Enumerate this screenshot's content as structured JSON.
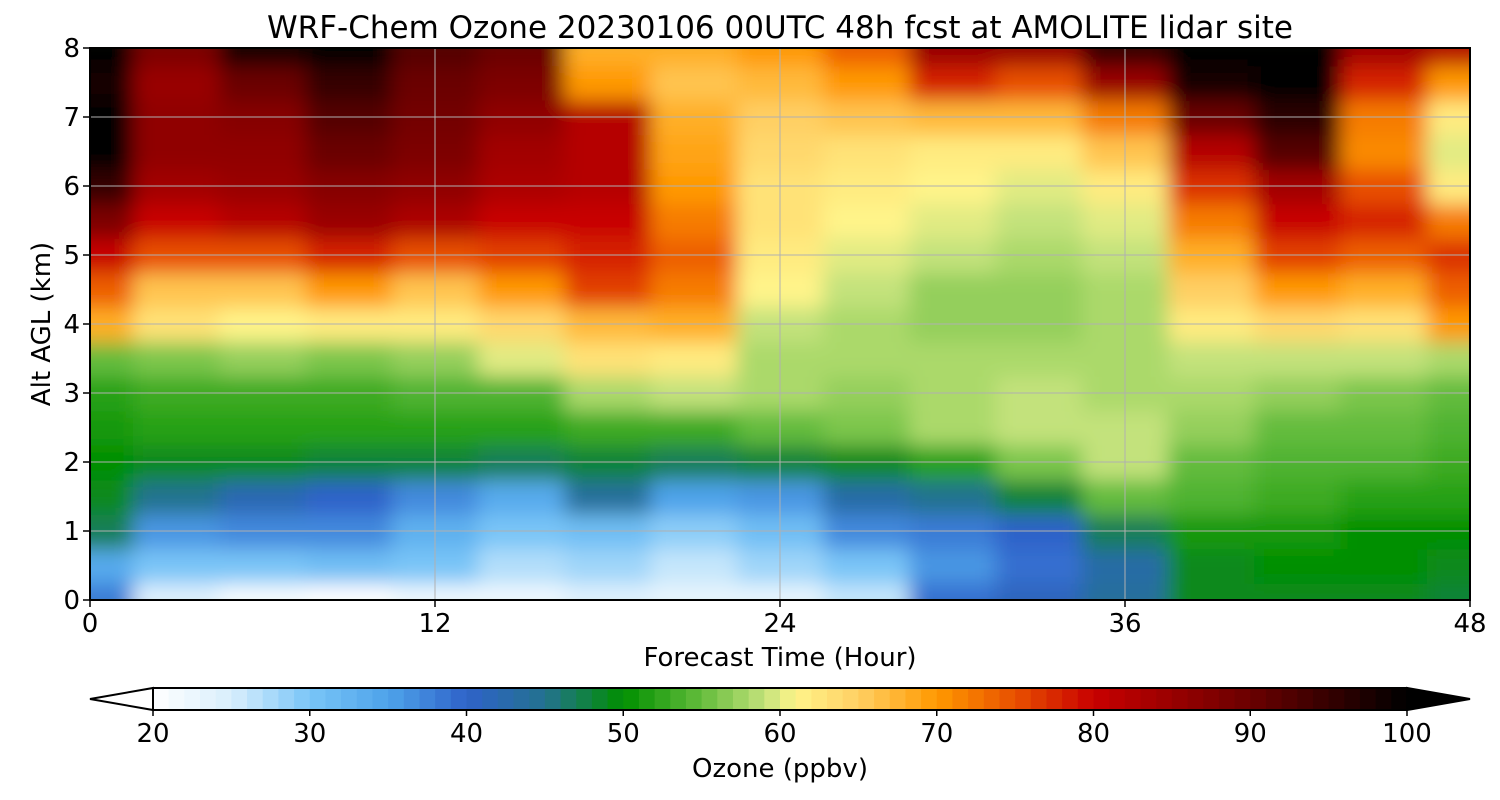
{
  "chart_data": {
    "type": "heatmap",
    "title": "WRF-Chem Ozone  20230106 00UTC 48h fcst at AMOLITE lidar site",
    "xlabel": "Forecast Time (Hour)",
    "ylabel": "Alt AGL (km)",
    "xlim": [
      0,
      48
    ],
    "ylim": [
      0,
      8
    ],
    "x_ticks": [
      0,
      12,
      24,
      36,
      48
    ],
    "y_ticks": [
      0,
      1,
      2,
      3,
      4,
      5,
      6,
      7,
      8
    ],
    "grid": true,
    "x": [
      0,
      3,
      6,
      9,
      12,
      15,
      18,
      21,
      24,
      27,
      30,
      33,
      36,
      39,
      42,
      45,
      48
    ],
    "y": [
      0,
      0.5,
      1,
      1.5,
      2,
      2.5,
      3,
      3.5,
      4,
      4.5,
      5,
      5.5,
      6,
      6.5,
      7,
      7.5,
      8
    ],
    "z": [
      [
        38,
        24,
        21,
        20,
        22,
        22,
        24,
        23,
        23,
        26,
        39,
        41,
        44,
        49,
        49,
        49,
        48
      ],
      [
        34,
        30,
        30,
        31,
        30,
        27,
        28,
        26,
        28,
        30,
        36,
        39,
        43,
        49,
        50,
        50,
        49
      ],
      [
        47,
        36,
        37,
        37,
        33,
        30,
        31,
        29,
        31,
        37,
        38,
        40,
        47,
        51,
        51,
        50,
        50
      ],
      [
        49,
        45,
        42,
        40,
        37,
        34,
        44,
        35,
        36,
        43,
        45,
        48,
        55,
        54,
        53,
        52,
        52
      ],
      [
        50,
        49,
        49,
        48,
        48,
        47,
        48,
        47,
        48,
        49,
        52,
        56,
        59,
        55,
        54,
        54,
        53
      ],
      [
        51,
        52,
        52,
        52,
        52,
        52,
        53,
        53,
        55,
        56,
        58,
        59,
        59,
        57,
        55,
        55,
        54
      ],
      [
        52,
        53,
        53,
        53,
        54,
        54,
        58,
        59,
        58,
        57,
        58,
        59,
        58,
        58,
        57,
        56,
        55
      ],
      [
        55,
        56,
        57,
        56,
        57,
        60,
        63,
        62,
        58,
        58,
        58,
        58,
        58,
        59,
        59,
        59,
        58
      ],
      [
        68,
        63,
        61,
        62,
        62,
        64,
        67,
        68,
        59,
        58,
        57,
        57,
        58,
        62,
        64,
        63,
        70
      ],
      [
        74,
        66,
        66,
        70,
        66,
        70,
        76,
        72,
        61,
        59,
        57,
        57,
        58,
        65,
        70,
        68,
        74
      ],
      [
        80,
        75,
        75,
        78,
        75,
        76,
        78,
        74,
        62,
        60,
        59,
        58,
        59,
        68,
        76,
        74,
        77
      ],
      [
        88,
        80,
        82,
        85,
        83,
        80,
        80,
        72,
        63,
        61,
        60,
        59,
        60,
        72,
        80,
        78,
        72
      ],
      [
        95,
        84,
        85,
        87,
        86,
        83,
        82,
        70,
        63,
        62,
        61,
        60,
        62,
        77,
        84,
        75,
        62
      ],
      [
        100,
        86,
        86,
        90,
        88,
        84,
        82,
        69,
        64,
        63,
        62,
        62,
        66,
        82,
        92,
        71,
        60
      ],
      [
        100,
        86,
        87,
        92,
        89,
        86,
        82,
        68,
        65,
        66,
        67,
        67,
        72,
        90,
        96,
        72,
        62
      ],
      [
        98,
        85,
        90,
        95,
        90,
        88,
        70,
        66,
        67,
        70,
        78,
        75,
        85,
        98,
        100,
        78,
        70
      ],
      [
        100,
        88,
        98,
        100,
        92,
        90,
        68,
        68,
        70,
        74,
        85,
        85,
        95,
        100,
        100,
        84,
        82
      ]
    ],
    "colorbar": {
      "label": "Ozone  (ppbv)",
      "min": 20,
      "max": 100,
      "ticks": [
        20,
        30,
        40,
        50,
        60,
        70,
        80,
        90,
        100
      ],
      "extend": "both"
    },
    "colormap": [
      [
        20,
        "#ffffff"
      ],
      [
        25,
        "#d8eefc"
      ],
      [
        30,
        "#79c5f7"
      ],
      [
        35,
        "#4ea3ea"
      ],
      [
        40,
        "#2f62c9"
      ],
      [
        45,
        "#23728f"
      ],
      [
        50,
        "#008f00"
      ],
      [
        55,
        "#64bc3c"
      ],
      [
        59,
        "#c3e27b"
      ],
      [
        61,
        "#fff48a"
      ],
      [
        65,
        "#ffcf63"
      ],
      [
        70,
        "#ff9900"
      ],
      [
        75,
        "#e85000"
      ],
      [
        80,
        "#c80000"
      ],
      [
        90,
        "#6a0000"
      ],
      [
        100,
        "#000000"
      ]
    ]
  }
}
